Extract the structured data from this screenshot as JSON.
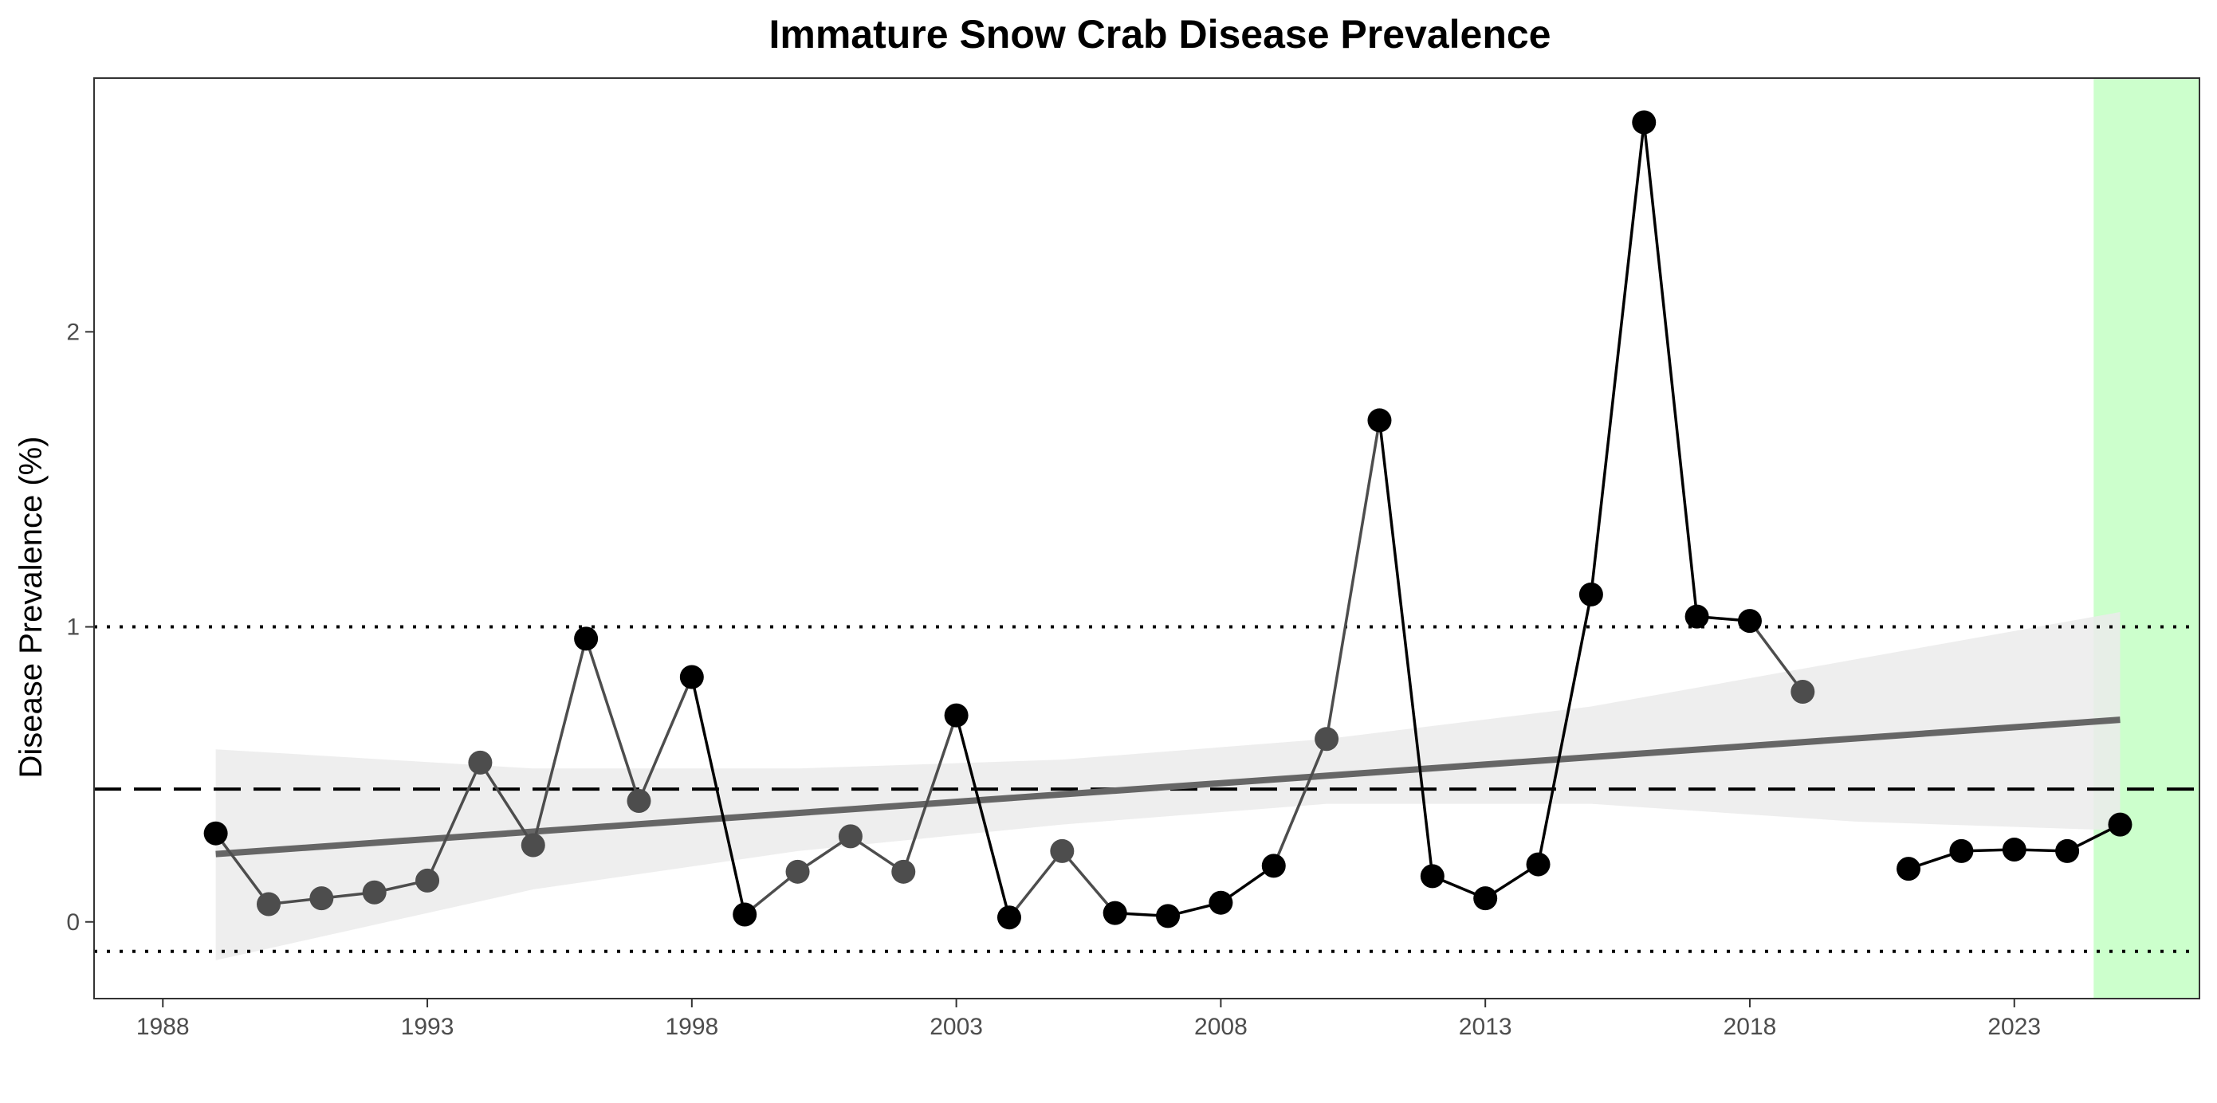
{
  "chart_data": {
    "type": "line",
    "title": "Immature Snow Crab Disease Prevalence",
    "xlabel": "",
    "ylabel": "Disease Prevalence (%)",
    "xlim": [
      1986.7,
      2026.5
    ],
    "ylim": [
      -0.26,
      2.86
    ],
    "x_ticks": [
      1988,
      1993,
      1998,
      2003,
      2008,
      2013,
      2018,
      2023
    ],
    "y_ticks": [
      0,
      1,
      2
    ],
    "grid": false,
    "legend": "none",
    "colors": {
      "observed": "#000000",
      "imputed": "#4d4d4d",
      "trend_line": "#666666",
      "confidence_band": "#ebebeb",
      "highlight": "#ccffcc",
      "reference_lines": "#000000",
      "tick_text": "#4d4d4d"
    },
    "series": [
      {
        "points": [
          {
            "x": 1989,
            "y": 0.3,
            "kind": "observed"
          },
          {
            "x": 1990,
            "y": 0.06,
            "kind": "imputed"
          },
          {
            "x": 1991,
            "y": 0.08,
            "kind": "imputed"
          },
          {
            "x": 1992,
            "y": 0.1,
            "kind": "imputed"
          },
          {
            "x": 1993,
            "y": 0.14,
            "kind": "imputed"
          },
          {
            "x": 1994,
            "y": 0.54,
            "kind": "imputed"
          },
          {
            "x": 1995,
            "y": 0.26,
            "kind": "imputed"
          },
          {
            "x": 1996,
            "y": 0.96,
            "kind": "observed"
          },
          {
            "x": 1997,
            "y": 0.41,
            "kind": "imputed"
          },
          {
            "x": 1998,
            "y": 0.83,
            "kind": "observed"
          },
          {
            "x": 1999,
            "y": 0.025,
            "kind": "observed"
          },
          {
            "x": 2000,
            "y": 0.17,
            "kind": "imputed"
          },
          {
            "x": 2001,
            "y": 0.29,
            "kind": "imputed"
          },
          {
            "x": 2002,
            "y": 0.17,
            "kind": "imputed"
          },
          {
            "x": 2003,
            "y": 0.7,
            "kind": "observed"
          },
          {
            "x": 2004,
            "y": 0.015,
            "kind": "observed"
          },
          {
            "x": 2005,
            "y": 0.24,
            "kind": "imputed"
          },
          {
            "x": 2006,
            "y": 0.03,
            "kind": "observed"
          },
          {
            "x": 2007,
            "y": 0.02,
            "kind": "observed"
          },
          {
            "x": 2008,
            "y": 0.065,
            "kind": "observed"
          },
          {
            "x": 2009,
            "y": 0.19,
            "kind": "observed"
          },
          {
            "x": 2010,
            "y": 0.62,
            "kind": "imputed"
          },
          {
            "x": 2011,
            "y": 1.7,
            "kind": "observed"
          },
          {
            "x": 2012,
            "y": 0.155,
            "kind": "observed"
          },
          {
            "x": 2013,
            "y": 0.08,
            "kind": "observed"
          },
          {
            "x": 2014,
            "y": 0.195,
            "kind": "observed"
          },
          {
            "x": 2015,
            "y": 1.11,
            "kind": "observed"
          },
          {
            "x": 2016,
            "y": 2.71,
            "kind": "observed"
          },
          {
            "x": 2017,
            "y": 1.035,
            "kind": "observed"
          },
          {
            "x": 2018,
            "y": 1.02,
            "kind": "observed"
          },
          {
            "x": 2019,
            "y": 0.78,
            "kind": "imputed"
          }
        ]
      },
      {
        "points": [
          {
            "x": 2021,
            "y": 0.18,
            "kind": "observed"
          },
          {
            "x": 2022,
            "y": 0.24,
            "kind": "observed"
          },
          {
            "x": 2023,
            "y": 0.245,
            "kind": "observed"
          },
          {
            "x": 2024,
            "y": 0.24,
            "kind": "observed"
          },
          {
            "x": 2025,
            "y": 0.33,
            "kind": "observed"
          }
        ]
      }
    ],
    "trend": {
      "x": [
        1989,
        2025
      ],
      "y": [
        0.23,
        0.685
      ]
    },
    "confidence_band": {
      "x": [
        1989,
        1995,
        2000,
        2005,
        2010,
        2015,
        2020,
        2025
      ],
      "lower": [
        -0.13,
        0.11,
        0.24,
        0.33,
        0.4,
        0.4,
        0.34,
        0.31
      ],
      "upper": [
        0.585,
        0.52,
        0.52,
        0.55,
        0.62,
        0.73,
        0.89,
        1.05
      ]
    },
    "hlines": {
      "mean": 0.45,
      "upper_bound": 1.0,
      "lower_bound": -0.1
    },
    "highlight_region": {
      "xmin": 2024.5,
      "xmax": 2026.5
    }
  }
}
